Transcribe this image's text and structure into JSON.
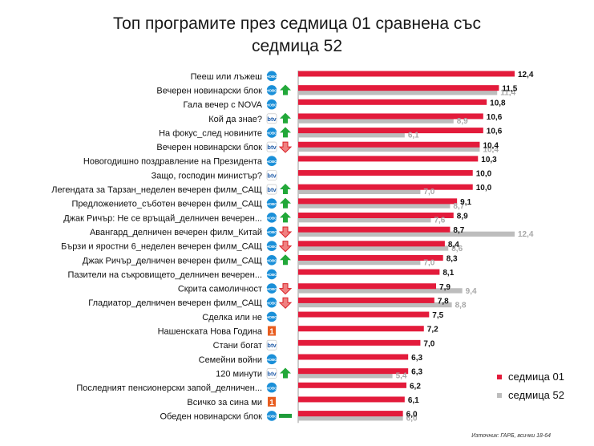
{
  "chart_data": {
    "type": "bar",
    "orientation": "horizontal",
    "title_line1": "Топ програмите през седмица 01 сравнена със",
    "title_line2": "седмица 52",
    "source": "Източник: ГАРБ, всички 18-64",
    "xlim": [
      0,
      12.4
    ],
    "categories": [
      "Пееш или лъжеш",
      "Вечерен новинарски блок",
      "Гала вечер с NOVA",
      "Кой да знае?",
      "На фокус_след новините",
      "Вечерен новинарски блок",
      "Новогодишно поздравление на Президента",
      "Защо, господин министър?",
      "Легендата за Тарзан_неделен вечерен филм_САЩ",
      "Предложението_съботен вечерен филм_САЩ",
      "Джак Ричър: Не се връщай_делничен вечерен...",
      "Авангард_делничен вечерен филм_Китай",
      "Бързи и яростни 6_неделен вечерен филм_САЩ",
      "Джак Ричър_делничен вечерен филм_САЩ",
      "Пазители на съкровището_делничен вечерен...",
      "Скрита самоличност",
      "Гладиатор_делничен вечерен филм_САЩ",
      "Сделка или не",
      "Нашенската Нова Година",
      "Стани богат",
      "Семейни войни",
      "120 минути",
      "Последният пенсионерски запой_делничен...",
      "Всичко за сина ми",
      "Обеден новинарски блок"
    ],
    "series": [
      {
        "name": "седмица 01",
        "color": "#e31b3b",
        "values": [
          12.4,
          11.5,
          10.8,
          10.6,
          10.6,
          10.4,
          10.3,
          10.0,
          10.0,
          9.1,
          8.9,
          8.7,
          8.4,
          8.3,
          8.1,
          7.9,
          7.8,
          7.5,
          7.2,
          7.0,
          6.3,
          6.3,
          6.2,
          6.1,
          6.0
        ],
        "labels": [
          "12,4",
          "11,5",
          "10,8",
          "10,6",
          "10,6",
          "10,4",
          "10,3",
          "10,0",
          "10,0",
          "9,1",
          "8,9",
          "8,7",
          "8,4",
          "8,3",
          "8,1",
          "7,9",
          "7,8",
          "7,5",
          "7,2",
          "7,0",
          "6,3",
          "6,3",
          "6,2",
          "6,1",
          "6,0"
        ]
      },
      {
        "name": "седмица 52",
        "color": "#bdbdbd",
        "values": [
          null,
          11.4,
          null,
          8.9,
          6.1,
          10.4,
          null,
          null,
          7.0,
          8.7,
          7.6,
          12.4,
          8.6,
          7.0,
          null,
          9.4,
          8.8,
          null,
          null,
          null,
          null,
          5.4,
          null,
          null,
          6.0
        ],
        "labels": [
          null,
          "11,4",
          null,
          "8,9",
          "6,1",
          "10,4",
          null,
          null,
          "7,0",
          "8,7",
          "7,6",
          "12,4",
          "8,6",
          "7,0",
          null,
          "9,4",
          "8,8",
          null,
          null,
          null,
          null,
          "5,4",
          null,
          null,
          "6,0"
        ]
      }
    ],
    "channels": [
      "nova",
      "nova",
      "nova",
      "btv",
      "nova",
      "btv",
      "nova",
      "btv",
      "btv",
      "nova",
      "nova",
      "nova",
      "nova",
      "nova",
      "nova",
      "nova",
      "nova",
      "nova",
      "kanal1",
      "btv",
      "nova",
      "btv",
      "nova",
      "kanal1",
      "nova"
    ],
    "trends": [
      "none",
      "up",
      "none",
      "up",
      "up",
      "down",
      "none",
      "none",
      "up",
      "up",
      "up",
      "down",
      "down",
      "up",
      "none",
      "down",
      "down",
      "none",
      "none",
      "none",
      "none",
      "up",
      "none",
      "none",
      "flat"
    ],
    "channel_logo_text": {
      "nova": "НОВО",
      "btv": "btv",
      "kanal1": "1"
    },
    "legend_position": "bottom-right"
  }
}
